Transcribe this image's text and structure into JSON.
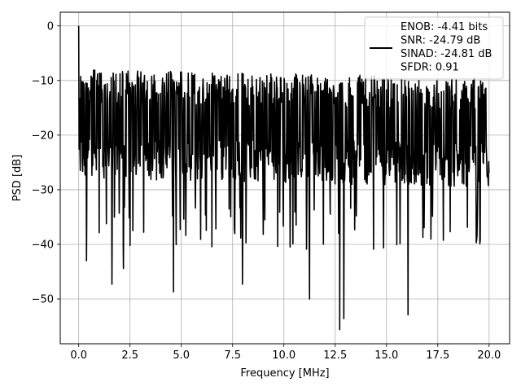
{
  "chart_data": {
    "type": "line",
    "title": "",
    "xlabel": "Frequency [MHz]",
    "ylabel": "PSD [dB]",
    "xlim": [
      -0.9,
      21.0
    ],
    "ylim": [
      -58.2,
      2.5
    ],
    "xticks": [
      0.0,
      2.5,
      5.0,
      7.5,
      10.0,
      12.5,
      15.0,
      17.5,
      20.0
    ],
    "xtick_labels": [
      "0.0",
      "2.5",
      "5.0",
      "7.5",
      "10.0",
      "12.5",
      "15.0",
      "17.5",
      "20.0"
    ],
    "yticks": [
      0,
      -10,
      -20,
      -30,
      -40,
      -50
    ],
    "ytick_labels": [
      "0",
      "−10",
      "−20",
      "−30",
      "−40",
      "−50"
    ],
    "grid": true,
    "legend_position": "top-right",
    "legend_lines": [
      "ENOB: -4.41 bits",
      "SNR: -24.79 dB",
      "SINAD: -24.81 dB",
      "SFDR: 0.91"
    ],
    "series": [
      {
        "color": "#000000",
        "x_range": [
          0.0,
          20.0
        ],
        "points": 1024,
        "typical_band_db": [
          -30,
          -8
        ],
        "peak": {
          "x": 0.0,
          "y": 0.0
        },
        "notable_minima": [
          {
            "x": 0.38,
            "y": -43.0
          },
          {
            "x": 1.62,
            "y": -47.3
          },
          {
            "x": 2.18,
            "y": -44.4
          },
          {
            "x": 4.62,
            "y": -48.7
          },
          {
            "x": 7.98,
            "y": -47.3
          },
          {
            "x": 11.25,
            "y": -50.0
          },
          {
            "x": 12.72,
            "y": -55.6
          },
          {
            "x": 12.92,
            "y": -53.6
          },
          {
            "x": 16.05,
            "y": -52.9
          }
        ]
      }
    ]
  }
}
